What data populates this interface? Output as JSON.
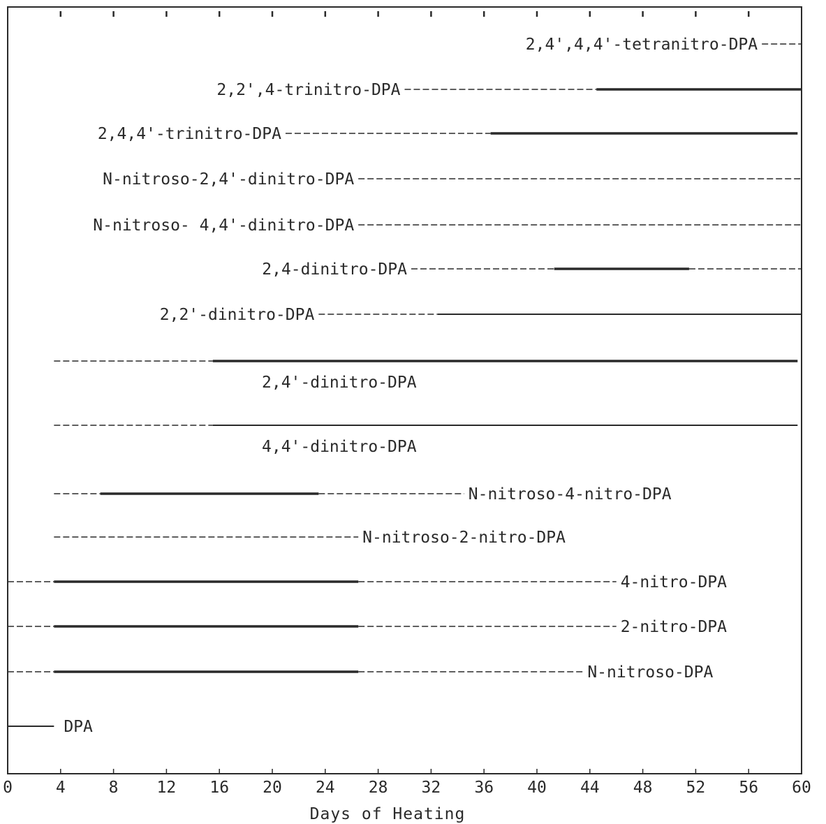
{
  "chart_data": {
    "type": "timeline",
    "xlabel": "Days of Heating",
    "xlim": [
      0,
      60
    ],
    "xticks": [
      0,
      4,
      8,
      12,
      16,
      20,
      24,
      28,
      32,
      36,
      40,
      44,
      48,
      52,
      56,
      60
    ],
    "top_tick_marks": [
      4,
      8,
      12,
      16,
      20,
      24,
      28,
      32,
      36,
      40,
      44,
      48,
      52,
      56
    ],
    "series": [
      {
        "name": "2,4',4,4'-tetranitro-DPA",
        "label_side": "before",
        "segments": [
          {
            "start": 57,
            "end": 60,
            "style": "dashed"
          }
        ]
      },
      {
        "name": "2,2',4-trinitro-DPA",
        "label_side": "before",
        "segments": [
          {
            "start": 30,
            "end": 44.5,
            "style": "dashed"
          },
          {
            "start": 44.5,
            "end": 60,
            "style": "solid-bold"
          }
        ]
      },
      {
        "name": "2,4,4'-trinitro-DPA",
        "label_side": "before",
        "segments": [
          {
            "start": 21,
            "end": 36.5,
            "style": "dashed"
          },
          {
            "start": 36.5,
            "end": 59.7,
            "style": "solid-bold"
          }
        ]
      },
      {
        "name": "N-nitroso-2,4'-dinitro-DPA",
        "label_side": "before",
        "segments": [
          {
            "start": 26.5,
            "end": 60,
            "style": "dashed"
          }
        ]
      },
      {
        "name": "N-nitroso- 4,4'-dinitro-DPA",
        "label_side": "before",
        "segments": [
          {
            "start": 26.5,
            "end": 60,
            "style": "dashed"
          }
        ]
      },
      {
        "name": "2,4-dinitro-DPA",
        "label_side": "before",
        "segments": [
          {
            "start": 30.5,
            "end": 41.3,
            "style": "dashed"
          },
          {
            "start": 41.3,
            "end": 51.5,
            "style": "solid-bold"
          },
          {
            "start": 51.5,
            "end": 60,
            "style": "dashed"
          }
        ]
      },
      {
        "name": "2,2'-dinitro-DPA",
        "label_side": "before",
        "segments": [
          {
            "start": 23.5,
            "end": 32.5,
            "style": "dashed"
          },
          {
            "start": 32.5,
            "end": 60,
            "style": "solid"
          }
        ]
      },
      {
        "name": "2,4'-dinitro-DPA",
        "label_side": "below",
        "segments": [
          {
            "start": 3.5,
            "end": 15.5,
            "style": "dashed"
          },
          {
            "start": 15.5,
            "end": 59.7,
            "style": "solid-bold"
          }
        ]
      },
      {
        "name": "4,4'-dinitro-DPA",
        "label_side": "below",
        "segments": [
          {
            "start": 3.5,
            "end": 15.5,
            "style": "dashed"
          },
          {
            "start": 15.5,
            "end": 59.7,
            "style": "solid"
          }
        ]
      },
      {
        "name": "N-nitroso-4-nitro-DPA",
        "label_side": "after",
        "segments": [
          {
            "start": 3.5,
            "end": 7,
            "style": "dashed"
          },
          {
            "start": 7,
            "end": 23.5,
            "style": "solid-bold"
          },
          {
            "start": 23.5,
            "end": 34.5,
            "style": "dashed"
          }
        ]
      },
      {
        "name": "N-nitroso-2-nitro-DPA",
        "label_side": "after",
        "segments": [
          {
            "start": 3.5,
            "end": 26.5,
            "style": "dashed"
          }
        ]
      },
      {
        "name": "4-nitro-DPA",
        "label_side": "after",
        "segments": [
          {
            "start": 0,
            "end": 3.5,
            "style": "dashed"
          },
          {
            "start": 3.5,
            "end": 26.5,
            "style": "solid-bold"
          },
          {
            "start": 26.5,
            "end": 46,
            "style": "dashed"
          }
        ]
      },
      {
        "name": "2-nitro-DPA",
        "label_side": "after",
        "segments": [
          {
            "start": 0,
            "end": 3.5,
            "style": "dashed"
          },
          {
            "start": 3.5,
            "end": 26.5,
            "style": "solid-bold"
          },
          {
            "start": 26.5,
            "end": 46,
            "style": "dashed"
          }
        ]
      },
      {
        "name": "N-nitroso-DPA",
        "label_side": "after",
        "segments": [
          {
            "start": 0,
            "end": 3.5,
            "style": "dashed"
          },
          {
            "start": 3.5,
            "end": 26.5,
            "style": "solid-bold"
          },
          {
            "start": 26.5,
            "end": 43.5,
            "style": "dashed"
          }
        ]
      },
      {
        "name": "DPA",
        "label_side": "after",
        "segments": [
          {
            "start": 0,
            "end": 3.5,
            "style": "solid"
          }
        ]
      }
    ]
  }
}
